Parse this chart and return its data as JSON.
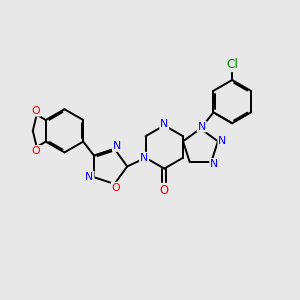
{
  "background_color": "#e8e8e8",
  "bond_color": "#000000",
  "N_color": "#0000ee",
  "O_color": "#ee0000",
  "Cl_color": "#008800",
  "line_width": 1.4,
  "font_size": 7.8,
  "fig_width": 3.0,
  "fig_height": 3.0,
  "dpi": 100,
  "xlim": [
    0,
    10
  ],
  "ylim": [
    0,
    10
  ]
}
